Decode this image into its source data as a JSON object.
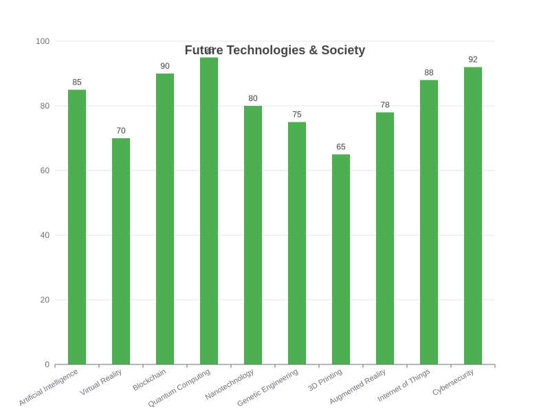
{
  "chart_data": {
    "type": "bar",
    "title": "Future Technologies & Society",
    "xlabel": "",
    "ylabel": "",
    "categories": [
      "Artificial Intelligence",
      "Virtual Reality",
      "Blockchain",
      "Quantum Computing",
      "Nanotechnology",
      "Genetic Engineering",
      "3D Printing",
      "Augmented Reality",
      "Internet of Things",
      "Cybersecurity"
    ],
    "values": [
      85,
      70,
      90,
      95,
      80,
      75,
      65,
      78,
      88,
      92
    ],
    "ylim": [
      0,
      100
    ],
    "yticks": [
      0,
      20,
      40,
      60,
      80,
      100
    ],
    "grid": true,
    "legend": "none",
    "bar_color": "#4caf50"
  }
}
